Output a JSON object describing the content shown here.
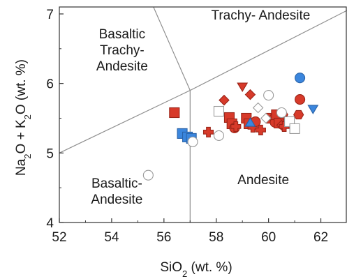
{
  "chart_data": {
    "type": "scatter",
    "title": "",
    "xlabel": {
      "main": "SiO",
      "sub": "2",
      "rest": " (wt. %)"
    },
    "ylabel": {
      "a": "Na",
      "a_sub": "2",
      "b": "O + K",
      "b_sub": "2",
      "c": "O (wt. %)"
    },
    "xlim": [
      52,
      63
    ],
    "ylim": [
      4,
      7.1
    ],
    "xticks": [
      "52",
      "54",
      "56",
      "58",
      "60",
      "62"
    ],
    "yticks": [
      "4",
      "5",
      "6",
      "7"
    ],
    "grid": false,
    "field_boundaries": [
      [
        [
          52,
          5
        ],
        [
          57,
          5.9
        ],
        [
          63,
          7.05
        ]
      ],
      [
        [
          57,
          5.9
        ],
        [
          57,
          4
        ]
      ],
      [
        [
          55.6,
          7.1
        ],
        [
          57,
          5.9
        ]
      ]
    ],
    "field_labels": [
      {
        "lines": [
          "Basaltic",
          "Trachy-",
          "Andesite"
        ],
        "x": 54.4,
        "y": 6.65,
        "anchor": "middle"
      },
      {
        "lines": [
          "Trachy- Andesite"
        ],
        "x": 59.7,
        "y": 6.92,
        "anchor": "middle"
      },
      {
        "lines": [
          "Basaltic-",
          "Andesite"
        ],
        "x": 54.2,
        "y": 4.5,
        "anchor": "middle"
      },
      {
        "lines": [
          "Andesite"
        ],
        "x": 59.8,
        "y": 4.55,
        "anchor": "middle"
      }
    ],
    "series": [
      {
        "color": "#d73a2a",
        "stroke": "#9b2418",
        "points": [
          {
            "x": 56.4,
            "y": 5.58,
            "shape": "square"
          },
          {
            "x": 57.7,
            "y": 5.3,
            "shape": "cross"
          },
          {
            "x": 58.3,
            "y": 5.76,
            "shape": "diamond"
          },
          {
            "x": 58.5,
            "y": 5.51,
            "shape": "square"
          },
          {
            "x": 58.6,
            "y": 5.42,
            "shape": "square"
          },
          {
            "x": 58.7,
            "y": 5.36,
            "shape": "circle"
          },
          {
            "x": 58.75,
            "y": 5.38,
            "shape": "cross"
          },
          {
            "x": 59.0,
            "y": 5.95,
            "shape": "triangle-down"
          },
          {
            "x": 59.15,
            "y": 5.5,
            "shape": "square"
          },
          {
            "x": 59.25,
            "y": 5.42,
            "shape": "square"
          },
          {
            "x": 59.3,
            "y": 5.84,
            "shape": "diamond"
          },
          {
            "x": 59.4,
            "y": 5.37,
            "shape": "cross"
          },
          {
            "x": 59.5,
            "y": 5.45,
            "shape": "circle"
          },
          {
            "x": 59.7,
            "y": 5.33,
            "shape": "cross"
          },
          {
            "x": 60.1,
            "y": 5.5,
            "shape": "square"
          },
          {
            "x": 60.2,
            "y": 5.5,
            "shape": "hexagon"
          },
          {
            "x": 60.25,
            "y": 5.44,
            "shape": "circle"
          },
          {
            "x": 60.3,
            "y": 5.55,
            "shape": "square"
          },
          {
            "x": 60.4,
            "y": 5.43,
            "shape": "square"
          },
          {
            "x": 60.5,
            "y": 5.4,
            "shape": "diamond"
          },
          {
            "x": 60.55,
            "y": 5.55,
            "shape": "hexagon"
          },
          {
            "x": 60.6,
            "y": 5.38,
            "shape": "cross"
          },
          {
            "x": 61.15,
            "y": 5.55,
            "shape": "hexagon"
          },
          {
            "x": 61.2,
            "y": 5.77,
            "shape": "circle"
          }
        ]
      },
      {
        "color": "#3b86dd",
        "stroke": "#2a63a8",
        "points": [
          {
            "x": 56.7,
            "y": 5.28,
            "shape": "square"
          },
          {
            "x": 56.9,
            "y": 5.23,
            "shape": "square"
          },
          {
            "x": 57.05,
            "y": 5.21,
            "shape": "square"
          },
          {
            "x": 59.3,
            "y": 5.44,
            "shape": "triangle-up"
          },
          {
            "x": 61.2,
            "y": 6.08,
            "shape": "circle"
          },
          {
            "x": 61.7,
            "y": 5.63,
            "shape": "triangle-down"
          }
        ]
      },
      {
        "color": "#ffffff",
        "stroke": "#9a9a9a",
        "points": [
          {
            "x": 55.4,
            "y": 4.68,
            "shape": "circle"
          },
          {
            "x": 57.1,
            "y": 5.16,
            "shape": "circle"
          },
          {
            "x": 58.1,
            "y": 5.25,
            "shape": "circle"
          },
          {
            "x": 58.1,
            "y": 5.6,
            "shape": "square"
          },
          {
            "x": 59.6,
            "y": 5.65,
            "shape": "diamond"
          },
          {
            "x": 59.9,
            "y": 5.5,
            "shape": "diamond"
          },
          {
            "x": 60.0,
            "y": 5.83,
            "shape": "circle"
          },
          {
            "x": 60.5,
            "y": 5.58,
            "shape": "circle"
          },
          {
            "x": 60.8,
            "y": 5.45,
            "shape": "square"
          },
          {
            "x": 61.0,
            "y": 5.35,
            "shape": "square"
          }
        ]
      }
    ]
  }
}
